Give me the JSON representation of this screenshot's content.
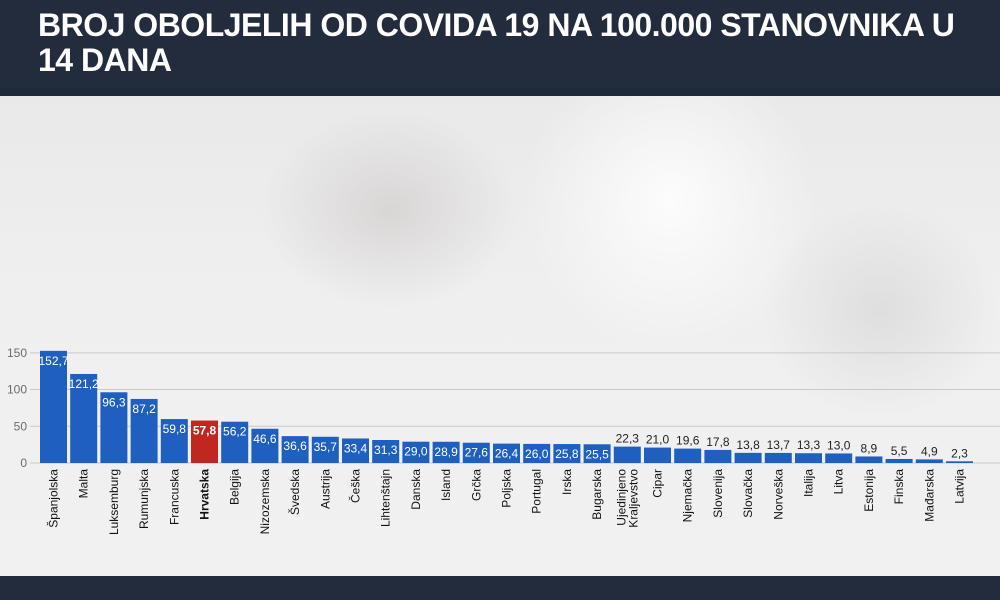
{
  "header": {
    "title": "BROJ OBOLJELIH OD COVIDA 19 NA 100.000 STANOVNIKA U 14 DANA"
  },
  "colors": {
    "bar": "#1f5fbf",
    "highlight_bar": "#c0281f",
    "header_bg": "#222c3c"
  },
  "chart_data": {
    "type": "bar",
    "title": "BROJ OBOLJELIH OD COVIDA 19 NA 100.000 STANOVNIKA U 14 DANA",
    "xlabel": "",
    "ylabel": "",
    "ylim": [
      0,
      160
    ],
    "yticks": [
      0,
      50,
      100,
      150
    ],
    "grid": true,
    "highlight": "Hrvatska",
    "categories": [
      "Španjolska",
      "Malta",
      "Luksemburg",
      "Rumunjska",
      "Francuska",
      "Hrvatska",
      "Belgija",
      "Nizozemska",
      "Švedska",
      "Austrija",
      "Češka",
      "Lihtenštajn",
      "Danska",
      "Island",
      "Grčka",
      "Poljska",
      "Portugal",
      "Irska",
      "Bugarska",
      "Ujedinjeno Kraljevstvo",
      "Cipar",
      "Njemačka",
      "Slovenija",
      "Slovačka",
      "Norveška",
      "Italija",
      "Litva",
      "Estonija",
      "Finska",
      "Mađarska",
      "Latvija"
    ],
    "values": [
      152.7,
      121.2,
      96.3,
      87.2,
      59.8,
      57.8,
      56.2,
      46.6,
      36.6,
      35.7,
      33.4,
      31.3,
      29.0,
      28.9,
      27.6,
      26.4,
      26.0,
      25.8,
      25.5,
      22.3,
      21.0,
      19.6,
      17.8,
      13.8,
      13.7,
      13.3,
      13.0,
      8.9,
      5.5,
      4.9,
      2.3
    ],
    "value_labels": [
      "152,7",
      "121,2",
      "96,3",
      "87,2",
      "59,8",
      "57,8",
      "56,2",
      "46,6",
      "36,6",
      "35,7",
      "33,4",
      "31,3",
      "29,0",
      "28,9",
      "27,6",
      "26,4",
      "26,0",
      "25,8",
      "25,5",
      "22,3",
      "21,0",
      "19,6",
      "17,8",
      "13,8",
      "13,7",
      "13,3",
      "13,0",
      "8,9",
      "5,5",
      "4,9",
      "2,3"
    ]
  }
}
